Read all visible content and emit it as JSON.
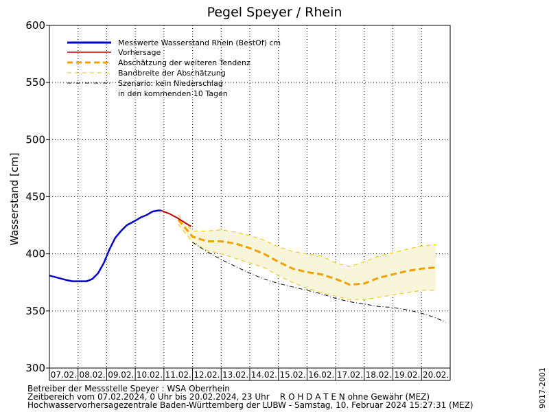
{
  "chart_data": {
    "type": "line",
    "title": "Pegel Speyer / Rhein",
    "ylabel": "Wasserstand [cm]",
    "ylim": [
      300,
      600
    ],
    "yticks": [
      300,
      350,
      400,
      450,
      500,
      550,
      600
    ],
    "xlim_days": [
      0,
      14
    ],
    "x_categories": [
      "07.02.",
      "08.02.",
      "09.02.",
      "10.02.",
      "11.02.",
      "12.02.",
      "13.02.",
      "14.02.",
      "15.02.",
      "16.02.",
      "17.02.",
      "18.02.",
      "19.02.",
      "20.02."
    ],
    "grid": true,
    "legend_position": "top-left",
    "legend": {
      "measured": "Messwerte Wasserstand Rhein (BestOf)  cm",
      "forecast": "Vorhersage",
      "tendency": "Abschätzung der weiteren Tendenz",
      "band": "Bandbreite der Abschätzung",
      "scenario_line1": "Szenario: kein Niederschlag",
      "scenario_line2": "in den kommenden 10 Tagen"
    },
    "series": [
      {
        "name": "Messwerte Wasserstand Rhein (BestOf)  cm",
        "color": "#0000c8",
        "points": [
          [
            0,
            381
          ],
          [
            0.3,
            379
          ],
          [
            0.6,
            377
          ],
          [
            0.8,
            376
          ],
          [
            1.0,
            376
          ],
          [
            1.3,
            376
          ],
          [
            1.5,
            378
          ],
          [
            1.7,
            383
          ],
          [
            1.9,
            392
          ],
          [
            2.1,
            404
          ],
          [
            2.3,
            414
          ],
          [
            2.5,
            420
          ],
          [
            2.7,
            425
          ],
          [
            3.0,
            429
          ],
          [
            3.2,
            432
          ],
          [
            3.4,
            434
          ],
          [
            3.6,
            437
          ],
          [
            3.8,
            438
          ],
          [
            3.9,
            438
          ]
        ]
      },
      {
        "name": "Vorhersage",
        "color": "#c00000",
        "points": [
          [
            3.9,
            438
          ],
          [
            4.2,
            435
          ],
          [
            4.5,
            431
          ],
          [
            4.75,
            427
          ],
          [
            4.95,
            424
          ]
        ]
      },
      {
        "name": "Abschätzung der weiteren Tendenz",
        "color": "#f0a000",
        "points": [
          [
            4.5,
            430
          ],
          [
            5.0,
            415
          ],
          [
            5.5,
            411
          ],
          [
            6.0,
            411
          ],
          [
            6.5,
            409
          ],
          [
            7.0,
            405
          ],
          [
            7.5,
            400
          ],
          [
            8.0,
            393
          ],
          [
            8.5,
            387
          ],
          [
            9.0,
            384
          ],
          [
            9.5,
            382
          ],
          [
            10.0,
            378
          ],
          [
            10.5,
            373
          ],
          [
            11.0,
            374
          ],
          [
            11.5,
            379
          ],
          [
            12.0,
            382
          ],
          [
            12.5,
            385
          ],
          [
            13.0,
            387
          ],
          [
            13.5,
            388
          ]
        ]
      },
      {
        "name": "Bandbreite der Abschätzung",
        "color": "#f0c000",
        "upper": [
          [
            4.5,
            434
          ],
          [
            5.0,
            420
          ],
          [
            5.5,
            420
          ],
          [
            6.0,
            421
          ],
          [
            6.5,
            419
          ],
          [
            7.0,
            416
          ],
          [
            7.5,
            412
          ],
          [
            8.0,
            406
          ],
          [
            8.5,
            402
          ],
          [
            9.0,
            400
          ],
          [
            9.5,
            398
          ],
          [
            10.0,
            392
          ],
          [
            10.5,
            389
          ],
          [
            11.0,
            393
          ],
          [
            11.5,
            398
          ],
          [
            12.0,
            401
          ],
          [
            12.5,
            404
          ],
          [
            13.0,
            407
          ],
          [
            13.5,
            408
          ]
        ],
        "lower": [
          [
            4.5,
            426
          ],
          [
            5.0,
            410
          ],
          [
            5.5,
            403
          ],
          [
            6.0,
            400
          ],
          [
            6.5,
            396
          ],
          [
            7.0,
            392
          ],
          [
            7.5,
            388
          ],
          [
            8.0,
            381
          ],
          [
            8.5,
            375
          ],
          [
            9.0,
            370
          ],
          [
            9.5,
            366
          ],
          [
            10.0,
            363
          ],
          [
            10.5,
            360
          ],
          [
            11.0,
            360
          ],
          [
            11.5,
            362
          ],
          [
            12.0,
            364
          ],
          [
            12.5,
            366
          ],
          [
            13.0,
            368
          ],
          [
            13.5,
            368
          ]
        ]
      },
      {
        "name": "Szenario: kein Niederschlag",
        "color": "#000000",
        "points": [
          [
            5.0,
            410
          ],
          [
            5.5,
            402
          ],
          [
            6.0,
            395
          ],
          [
            6.5,
            389
          ],
          [
            7.0,
            383
          ],
          [
            7.5,
            378
          ],
          [
            8.0,
            374
          ],
          [
            8.5,
            371
          ],
          [
            9.0,
            368
          ],
          [
            9.5,
            365
          ],
          [
            10.0,
            361
          ],
          [
            10.5,
            358
          ],
          [
            11.0,
            356
          ],
          [
            11.5,
            354
          ],
          [
            12.0,
            353
          ],
          [
            12.5,
            351
          ],
          [
            13.0,
            348
          ],
          [
            13.5,
            344
          ],
          [
            13.85,
            340
          ]
        ]
      }
    ],
    "footer_line1": "Betreiber der Messstelle Speyer : WSA Oberrhein",
    "footer_line2": "Zeitbereich vom 07.02.2024, 0 Uhr bis 20.02.2024, 23 Uhr    R O H D A T E N ohne Gewähr (MEZ)",
    "footer_line3": "Hochwasservorhersagezentrale Baden-Württemberg der LUBW - Samstag, 10. Februar 2024 15:27:31 (MEZ)",
    "side_code": "9017-2001"
  }
}
